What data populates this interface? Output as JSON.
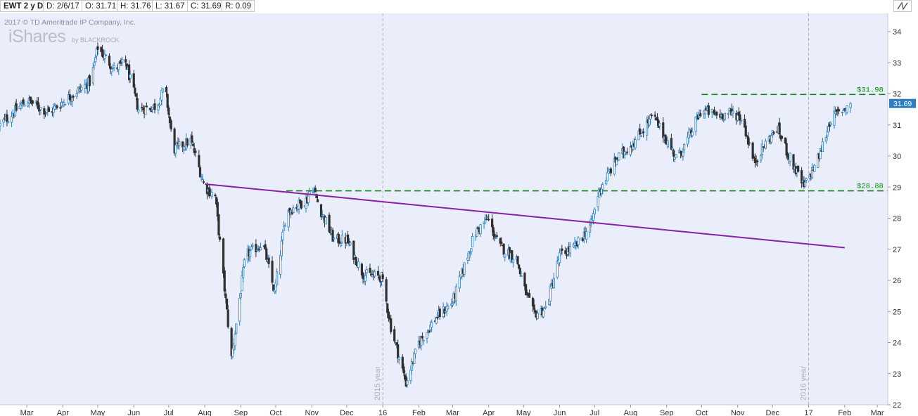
{
  "header": {
    "symbol": "EWT 2 y D",
    "date": "D: 2/6/17",
    "open": "O: 31.71",
    "high": "H: 31.76",
    "low": "L: 31.67",
    "close": "C: 31.69",
    "range": "R: 0.09"
  },
  "watermark": {
    "copyright": "2017 © TD Ameritrade IP Company, Inc.",
    "logo": "iShares",
    "logo_by": "by BLACKROCK"
  },
  "colors": {
    "up": "#2f7fc1",
    "down": "#303030",
    "trendline": "#8a1fa8",
    "level": "#0a8a0a",
    "last_price_bg": "#2f7fc1",
    "plot_bg": "#eaeefb"
  },
  "chart_data": {
    "type": "candlestick",
    "ylim": [
      22,
      34.5
    ],
    "y_ticks": [
      22,
      23,
      24,
      25,
      26,
      27,
      28,
      29,
      30,
      31,
      32,
      33,
      34
    ],
    "x_range": [
      "2015-02-06",
      "2017-03-10"
    ],
    "x_ticks": [
      {
        "label": "Mar",
        "date": "2015-03-01"
      },
      {
        "label": "Apr",
        "date": "2015-04-01"
      },
      {
        "label": "May",
        "date": "2015-05-01"
      },
      {
        "label": "Jun",
        "date": "2015-06-01"
      },
      {
        "label": "Jul",
        "date": "2015-07-01"
      },
      {
        "label": "Aug",
        "date": "2015-08-01"
      },
      {
        "label": "Sep",
        "date": "2015-09-01"
      },
      {
        "label": "Oct",
        "date": "2015-10-01"
      },
      {
        "label": "Nov",
        "date": "2015-11-01"
      },
      {
        "label": "Dec",
        "date": "2015-12-01"
      },
      {
        "label": "16",
        "date": "2016-01-01"
      },
      {
        "label": "Feb",
        "date": "2016-02-01"
      },
      {
        "label": "Mar",
        "date": "2016-03-01"
      },
      {
        "label": "Apr",
        "date": "2016-04-01"
      },
      {
        "label": "May",
        "date": "2016-05-01"
      },
      {
        "label": "Jun",
        "date": "2016-06-01"
      },
      {
        "label": "Jul",
        "date": "2016-07-01"
      },
      {
        "label": "Aug",
        "date": "2016-08-01"
      },
      {
        "label": "Sep",
        "date": "2016-09-01"
      },
      {
        "label": "Oct",
        "date": "2016-10-01"
      },
      {
        "label": "Nov",
        "date": "2016-11-01"
      },
      {
        "label": "Dec",
        "date": "2016-12-01"
      },
      {
        "label": "17",
        "date": "2017-01-01"
      },
      {
        "label": "Feb",
        "date": "2017-02-01"
      },
      {
        "label": "Mar",
        "date": "2017-03-01"
      }
    ],
    "year_lines": [
      {
        "date": "2016-01-01",
        "label": "2015 year"
      },
      {
        "date": "2017-01-01",
        "label": "2016 year"
      }
    ],
    "price_path": [
      [
        "2015-02-06",
        31.0
      ],
      [
        "2015-03-01",
        31.8
      ],
      [
        "2015-03-20",
        31.4
      ],
      [
        "2015-04-10",
        32.0
      ],
      [
        "2015-04-25",
        32.4
      ],
      [
        "2015-05-01",
        33.5
      ],
      [
        "2015-05-15",
        32.8
      ],
      [
        "2015-05-25",
        33.0
      ],
      [
        "2015-06-05",
        31.5
      ],
      [
        "2015-06-20",
        31.6
      ],
      [
        "2015-06-28",
        32.2
      ],
      [
        "2015-07-05",
        30.2
      ],
      [
        "2015-07-20",
        30.5
      ],
      [
        "2015-08-01",
        29.0
      ],
      [
        "2015-08-10",
        28.7
      ],
      [
        "2015-08-24",
        23.5
      ],
      [
        "2015-09-05",
        26.8
      ],
      [
        "2015-09-20",
        27.2
      ],
      [
        "2015-09-30",
        25.6
      ],
      [
        "2015-10-10",
        28.2
      ],
      [
        "2015-10-28",
        28.6
      ],
      [
        "2015-11-01",
        29.1
      ],
      [
        "2015-11-08",
        28.3
      ],
      [
        "2015-11-20",
        27.3
      ],
      [
        "2015-12-01",
        27.3
      ],
      [
        "2015-12-15",
        26.2
      ],
      [
        "2015-12-31",
        26.1
      ],
      [
        "2016-01-08",
        24.5
      ],
      [
        "2016-01-21",
        22.7
      ],
      [
        "2016-02-01",
        24.0
      ],
      [
        "2016-02-16",
        24.8
      ],
      [
        "2016-03-01",
        25.3
      ],
      [
        "2016-03-20",
        27.5
      ],
      [
        "2016-03-31",
        28.0
      ],
      [
        "2016-04-10",
        27.1
      ],
      [
        "2016-04-25",
        26.7
      ],
      [
        "2016-05-01",
        25.8
      ],
      [
        "2016-05-10",
        24.9
      ],
      [
        "2016-05-20",
        25.1
      ],
      [
        "2016-06-01",
        26.8
      ],
      [
        "2016-06-15",
        27.1
      ],
      [
        "2016-06-28",
        27.8
      ],
      [
        "2016-07-05",
        28.9
      ],
      [
        "2016-07-20",
        29.9
      ],
      [
        "2016-08-05",
        30.5
      ],
      [
        "2016-08-20",
        31.3
      ],
      [
        "2016-09-01",
        30.5
      ],
      [
        "2016-09-10",
        29.9
      ],
      [
        "2016-09-20",
        30.6
      ],
      [
        "2016-10-01",
        31.5
      ],
      [
        "2016-10-15",
        31.3
      ],
      [
        "2016-10-28",
        31.4
      ],
      [
        "2016-11-05",
        31.2
      ],
      [
        "2016-11-15",
        29.8
      ],
      [
        "2016-11-25",
        30.4
      ],
      [
        "2016-12-05",
        30.9
      ],
      [
        "2016-12-15",
        30.0
      ],
      [
        "2016-12-28",
        29.0
      ],
      [
        "2017-01-10",
        30.0
      ],
      [
        "2017-01-20",
        31.2
      ],
      [
        "2017-02-06",
        31.69
      ]
    ],
    "last_date": "2017-02-06",
    "last_price": "31.69",
    "resistance": {
      "value": 31.98,
      "label": "$31.98",
      "from": "2016-10-01",
      "to": "2017-03-10"
    },
    "support": {
      "value": 28.88,
      "label": "$28.88",
      "from": "2015-10-10",
      "to": "2017-03-10"
    },
    "trendline": {
      "start": [
        "2015-08-01",
        29.1
      ],
      "end": [
        "2017-02-01",
        27.05
      ]
    }
  }
}
